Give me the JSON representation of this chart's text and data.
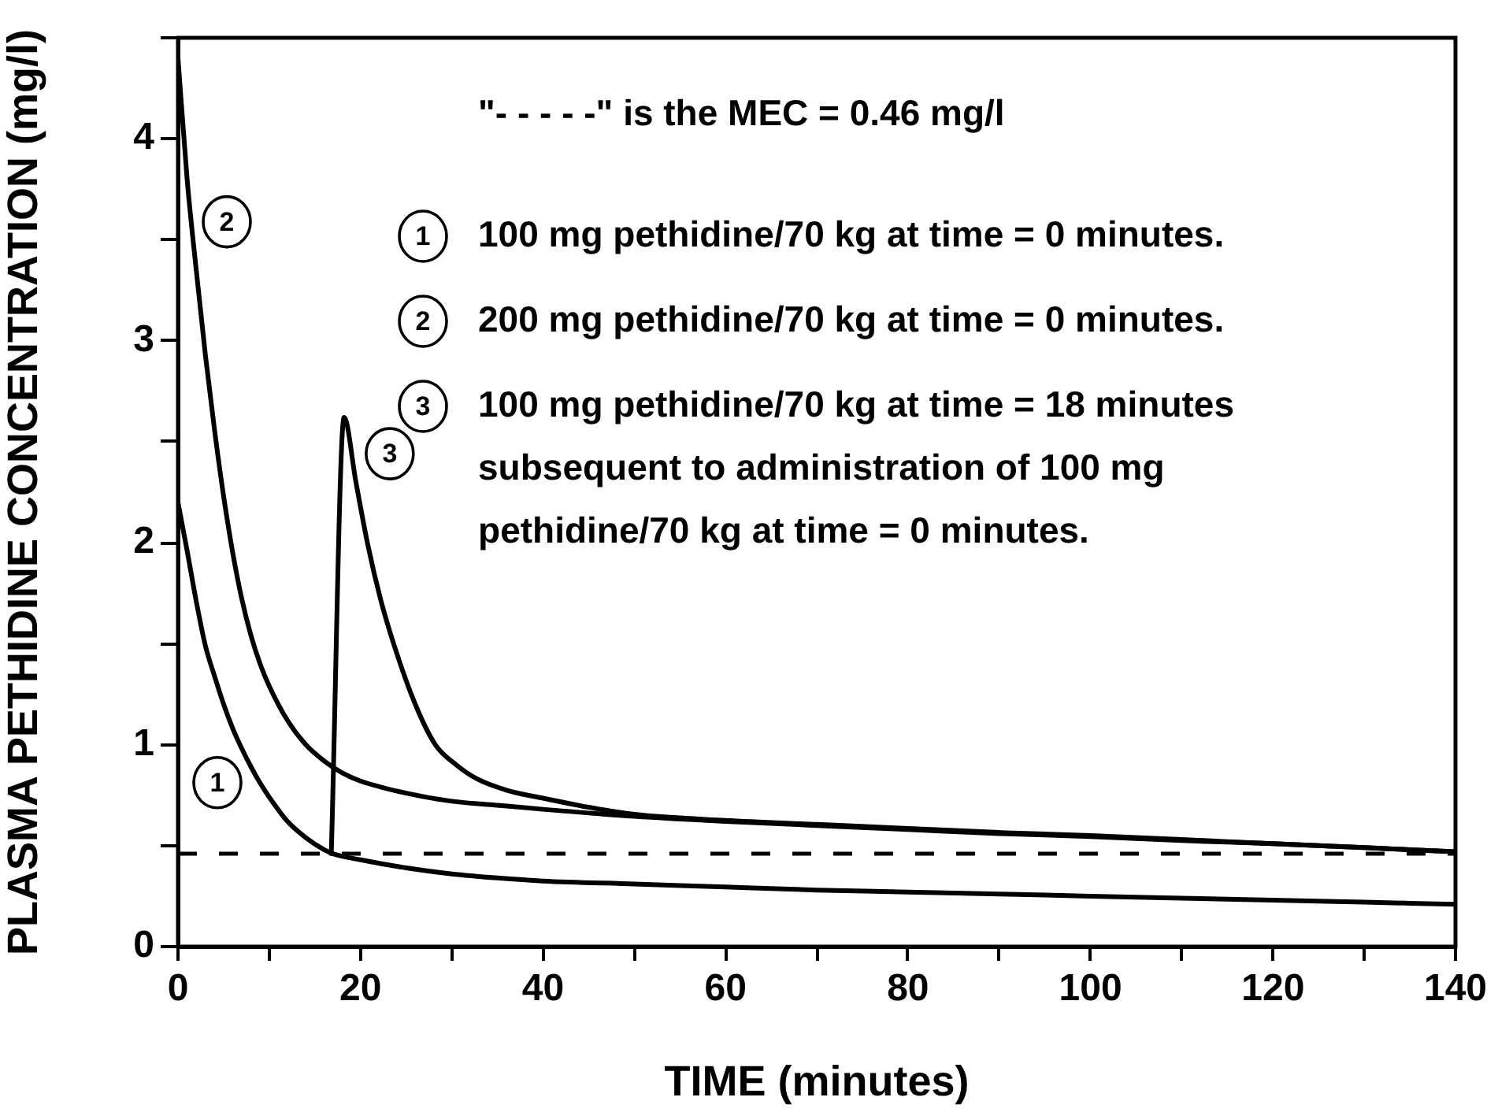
{
  "chart_data": {
    "type": "line",
    "xlabel": "TIME (minutes)",
    "ylabel": "PLASMA PETHIDINE CONCENTRATION (mg/l)",
    "xlim": [
      0,
      140
    ],
    "xticks": [
      0,
      {
        "value": 10,
        "label": null
      },
      20,
      {
        "value": 30,
        "label": null
      },
      40,
      {
        "value": 50,
        "label": null
      },
      60,
      {
        "value": 70,
        "label": null
      },
      80,
      {
        "value": 90,
        "label": null
      },
      100,
      {
        "value": 110,
        "label": null
      },
      120,
      {
        "value": 130,
        "label": null
      },
      140
    ],
    "ylim": [
      0,
      4.5
    ],
    "yticks": [
      0,
      {
        "value": 0.5,
        "label": null
      },
      1,
      {
        "value": 1.5,
        "label": null
      },
      2,
      {
        "value": 2.5,
        "label": null
      },
      3,
      {
        "value": 3.5,
        "label": null
      },
      4,
      {
        "value": 4.5,
        "label": null
      }
    ],
    "marker": "none",
    "legend": "top",
    "series": [
      {
        "name": "1",
        "color": "#000000",
        "x": [
          0,
          1,
          2,
          3,
          4,
          5,
          6,
          7,
          8,
          9,
          10,
          12,
          14,
          16,
          17,
          20,
          25,
          30,
          35,
          40,
          50,
          60,
          70,
          80,
          90,
          100,
          110,
          120,
          130,
          140
        ],
        "values": [
          2.2,
          1.96,
          1.71,
          1.49,
          1.34,
          1.2,
          1.08,
          0.98,
          0.89,
          0.81,
          0.74,
          0.62,
          0.54,
          0.48,
          0.46,
          0.43,
          0.39,
          0.36,
          0.34,
          0.325,
          0.31,
          0.295,
          0.28,
          0.27,
          0.26,
          0.25,
          0.24,
          0.23,
          0.22,
          0.21
        ]
      },
      {
        "name": "2",
        "color": "#000000",
        "x": [
          0,
          1,
          2,
          3,
          4,
          5,
          6,
          7,
          8,
          9,
          10,
          12,
          14,
          16,
          18,
          20,
          25,
          30,
          35,
          40,
          50,
          60,
          70,
          80,
          90,
          100,
          110,
          120,
          130,
          140
        ],
        "values": [
          4.4,
          3.8,
          3.35,
          2.93,
          2.56,
          2.23,
          1.95,
          1.72,
          1.54,
          1.4,
          1.29,
          1.12,
          1.0,
          0.92,
          0.86,
          0.82,
          0.76,
          0.72,
          0.7,
          0.68,
          0.645,
          0.62,
          0.6,
          0.58,
          0.56,
          0.545,
          0.525,
          0.51,
          0.49,
          0.47
        ]
      },
      {
        "name": "3",
        "color": "#000000",
        "x": [
          16.8,
          18.2,
          19.5,
          20.8,
          22.2,
          23.7,
          26,
          28.2,
          30.5,
          32.8,
          36,
          40,
          45,
          50,
          60,
          70,
          80,
          90,
          100,
          110,
          120,
          130,
          140
        ],
        "values": [
          0.46,
          2.62,
          2.3,
          1.99,
          1.72,
          1.49,
          1.2,
          1.0,
          0.9,
          0.83,
          0.775,
          0.735,
          0.69,
          0.655,
          0.625,
          0.605,
          0.585,
          0.565,
          0.55,
          0.53,
          0.51,
          0.49,
          0.47
        ]
      }
    ],
    "ref_lines": [
      {
        "axis": "y",
        "value": 0.46,
        "color": "#000000",
        "line_style": "dashed"
      }
    ],
    "annotations": [
      "\"- - - - -\" is the MEC = 0.46 mg/l",
      "100 mg pethidine/70 kg at time = 0 minutes.",
      "200 mg pethidine/70 kg at time = 0 minutes.",
      "100 mg pethidine/70 kg at time = 18 minutes subsequent to administration of 100 mg pethidine/70 kg at time = 0 minutes."
    ]
  }
}
